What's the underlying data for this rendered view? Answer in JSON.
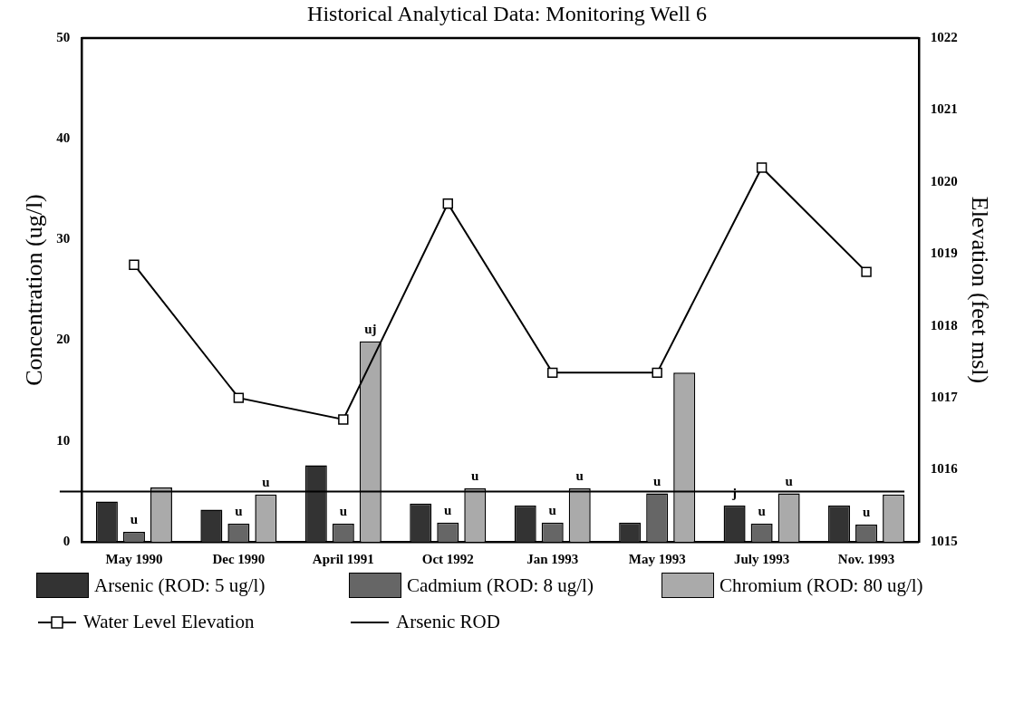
{
  "chart_data": {
    "type": "bar",
    "title": "Historical Analytical Data: Monitoring Well 6",
    "ylabel": "Concentration (ug/l)",
    "y2label": "Elevation (feet msl)",
    "categories": [
      "May 1990",
      "Dec 1990",
      "April 1991",
      "Oct 1992",
      "Jan 1993",
      "May 1993",
      "July 1993",
      "Nov. 1993"
    ],
    "series": [
      {
        "name": "Arsenic (ROD: 5 ug/l)",
        "color": "#333333",
        "values": [
          4.0,
          3.2,
          7.6,
          3.8,
          3.6,
          1.9,
          3.6,
          3.6
        ],
        "value_labels": [
          null,
          null,
          null,
          null,
          null,
          null,
          "j",
          null
        ]
      },
      {
        "name": "Cadmium (ROD: 8 ug/l)",
        "color": "#666666",
        "values": [
          1.0,
          1.8,
          1.8,
          1.9,
          1.9,
          4.8,
          1.8,
          1.7
        ],
        "value_labels": [
          "u",
          "u",
          "u",
          "u",
          "u",
          "u",
          "u",
          "u"
        ]
      },
      {
        "name": "Chromium (ROD: 80 ug/l)",
        "color": "#aaaaaa",
        "values": [
          5.4,
          4.7,
          19.9,
          5.3,
          5.3,
          16.8,
          4.8,
          4.7
        ],
        "value_labels": [
          null,
          "u",
          "uj",
          "u",
          "u",
          null,
          "u",
          null
        ]
      },
      {
        "name": "Water Level Elevation",
        "type": "line",
        "axis": "y2",
        "marker": "square",
        "color": "#000000",
        "values": [
          1018.85,
          1017.0,
          1016.7,
          1019.7,
          1017.35,
          1017.35,
          1020.2,
          1018.75
        ]
      }
    ],
    "ref_lines": [
      {
        "axis": "y",
        "value": 5,
        "label": "Arsenic ROD",
        "color": "#000000"
      }
    ],
    "ylim": [
      0,
      50
    ],
    "yticks": [
      0,
      10,
      20,
      30,
      40,
      50
    ],
    "y2lim": [
      1015,
      1022
    ],
    "y2ticks": [
      1015,
      1016,
      1017,
      1018,
      1019,
      1020,
      1021,
      1022
    ],
    "grid": false,
    "legend": "bottom"
  }
}
